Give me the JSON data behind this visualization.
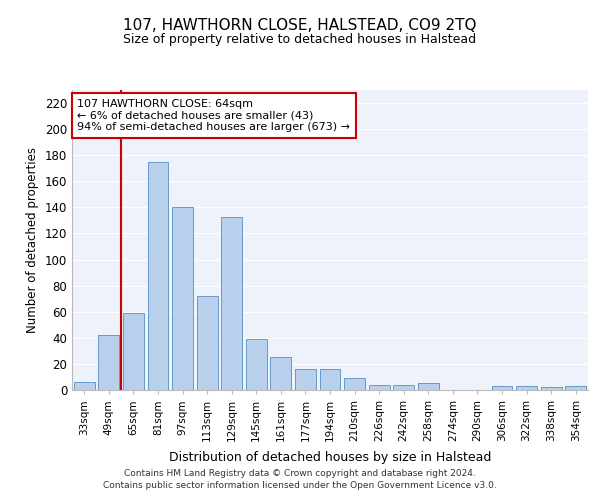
{
  "title": "107, HAWTHORN CLOSE, HALSTEAD, CO9 2TQ",
  "subtitle": "Size of property relative to detached houses in Halstead",
  "xlabel": "Distribution of detached houses by size in Halstead",
  "ylabel": "Number of detached properties",
  "categories": [
    "33sqm",
    "49sqm",
    "65sqm",
    "81sqm",
    "97sqm",
    "113sqm",
    "129sqm",
    "145sqm",
    "161sqm",
    "177sqm",
    "194sqm",
    "210sqm",
    "226sqm",
    "242sqm",
    "258sqm",
    "274sqm",
    "290sqm",
    "306sqm",
    "322sqm",
    "338sqm",
    "354sqm"
  ],
  "values": [
    6,
    42,
    59,
    175,
    140,
    72,
    133,
    39,
    25,
    16,
    16,
    9,
    4,
    4,
    5,
    0,
    0,
    3,
    3,
    2,
    3
  ],
  "bar_color": "#b8d0eb",
  "bar_edge_color": "#6699cc",
  "bar_highlight_color": "#cc0000",
  "vline_index": 2,
  "annotation_title": "107 HAWTHORN CLOSE: 64sqm",
  "annotation_line1": "← 6% of detached houses are smaller (43)",
  "annotation_line2": "94% of semi-detached houses are larger (673) →",
  "annotation_box_color": "#cc0000",
  "ylim": [
    0,
    230
  ],
  "yticks": [
    0,
    20,
    40,
    60,
    80,
    100,
    120,
    140,
    160,
    180,
    200,
    220
  ],
  "background_color": "#eef2fa",
  "grid_color": "#ffffff",
  "footer_line1": "Contains HM Land Registry data © Crown copyright and database right 2024.",
  "footer_line2": "Contains public sector information licensed under the Open Government Licence v3.0."
}
